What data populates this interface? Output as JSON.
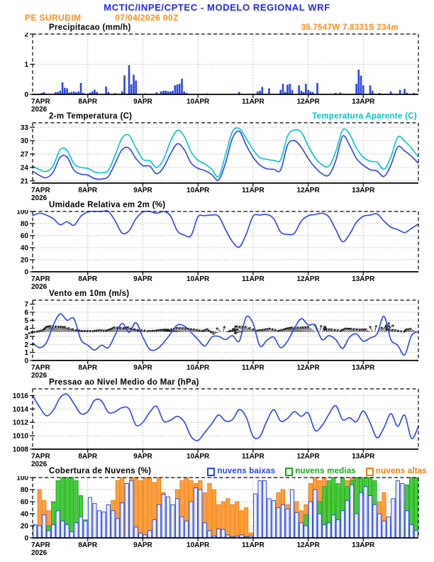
{
  "header": {
    "title": "MCTIC/INPE/CPTEC - MODELO REGIONAL WRF",
    "station": "PE SURUBIM",
    "run": "07/04/2026 00Z",
    "location": "35.7547W 7.8331S 234m"
  },
  "x_axis": {
    "day_labels": [
      "7APR",
      "8APR",
      "9APR",
      "10APR",
      "11APR",
      "12APR",
      "13APR"
    ],
    "year": "2026",
    "total_hours": 168
  },
  "colors": {
    "title_blue": "#2525ee",
    "orange": "#ff8c1a",
    "cyan": "#00c4ca",
    "line_blue": "#2b46e0",
    "green": "#18a818",
    "grid_gray": "#999999"
  },
  "chart_data": [
    {
      "type": "bar",
      "title": "Precipitacao (mm/h)",
      "ylabel": "mm/h",
      "ylim": [
        0,
        2
      ],
      "yticks": [
        0,
        1,
        2
      ],
      "color": "#2b46e0",
      "bars": [
        [
          4,
          0.05
        ],
        [
          5,
          0.07
        ],
        [
          10,
          0.07
        ],
        [
          11,
          0.08
        ],
        [
          12,
          0.12
        ],
        [
          13,
          0.4
        ],
        [
          14,
          0.22
        ],
        [
          15,
          0.2
        ],
        [
          16,
          0.06
        ],
        [
          17,
          0.08
        ],
        [
          18,
          0.1
        ],
        [
          19,
          0.07
        ],
        [
          20,
          0.1
        ],
        [
          21,
          0.38
        ],
        [
          22,
          0.05
        ],
        [
          25,
          0.06
        ],
        [
          26,
          0.1
        ],
        [
          27,
          0.15
        ],
        [
          28,
          0.08
        ],
        [
          32,
          0.26
        ],
        [
          33,
          0.08
        ],
        [
          36,
          0.04
        ],
        [
          39,
          0.1
        ],
        [
          40,
          0.63
        ],
        [
          42,
          0.97
        ],
        [
          43,
          0.33
        ],
        [
          44,
          0.65
        ],
        [
          45,
          0.46
        ],
        [
          49,
          0.03
        ],
        [
          51,
          0.02
        ],
        [
          54,
          0.07
        ],
        [
          56,
          0.1
        ],
        [
          57,
          0.12
        ],
        [
          58,
          0.12
        ],
        [
          59,
          0.1
        ],
        [
          60,
          0.1
        ],
        [
          61,
          0.12
        ],
        [
          62,
          0.3
        ],
        [
          63,
          0.33
        ],
        [
          64,
          0.35
        ],
        [
          65,
          0.52
        ],
        [
          66,
          0.1
        ],
        [
          67,
          0.05
        ],
        [
          74,
          0.02
        ],
        [
          76,
          0.03
        ],
        [
          78,
          0.02
        ],
        [
          90,
          0.08
        ],
        [
          98,
          0.1
        ],
        [
          99,
          0.12
        ],
        [
          100,
          0.25
        ],
        [
          103,
          0.2
        ],
        [
          108,
          0.15
        ],
        [
          109,
          0.35
        ],
        [
          110,
          0.08
        ],
        [
          111,
          0.32
        ],
        [
          112,
          0.35
        ],
        [
          113,
          0.15
        ],
        [
          116,
          0.3
        ],
        [
          117,
          0.12
        ],
        [
          118,
          0.08
        ],
        [
          119,
          0.35
        ],
        [
          120,
          0.15
        ],
        [
          121,
          0.1
        ],
        [
          122,
          0.08
        ],
        [
          124,
          0.38
        ],
        [
          132,
          0.05
        ],
        [
          134,
          0.06
        ],
        [
          141,
          0.35
        ],
        [
          142,
          0.82
        ],
        [
          143,
          0.62
        ],
        [
          144,
          0.3
        ],
        [
          147,
          0.3
        ],
        [
          148,
          0.12
        ],
        [
          151,
          0.05
        ],
        [
          156,
          0.1
        ],
        [
          160,
          0.15
        ],
        [
          162,
          0.18
        ],
        [
          163,
          0.05
        ],
        [
          166,
          0.05
        ]
      ]
    },
    {
      "type": "line",
      "title": "2-m Temperatura (C)",
      "right_label": "Temperatura Aparente (C)",
      "ylim": [
        20.5,
        34
      ],
      "yticks": [
        21,
        24,
        27,
        30,
        33
      ],
      "x_step": 3,
      "series": [
        {
          "name": "2-m Temperatura (C)",
          "color": "#2b46e0",
          "values": [
            23.2,
            22.2,
            21.7,
            23.0,
            26.3,
            26.3,
            23.4,
            22.5,
            22.3,
            21.5,
            21.4,
            22.0,
            25.0,
            28.0,
            28.3,
            26.0,
            24.4,
            24.3,
            22.6,
            24.0,
            27.0,
            29.3,
            28.0,
            25.0,
            23.8,
            23.3,
            22.4,
            21.2,
            25.0,
            30.5,
            32.1,
            29.0,
            26.3,
            24.5,
            23.7,
            23.6,
            23.4,
            29.0,
            30.0,
            28.5,
            26.0,
            24.0,
            22.6,
            22.3,
            25.5,
            31.0,
            29.0,
            26.0,
            24.5,
            23.5,
            23.2,
            22.0,
            24.5,
            28.6,
            27.7,
            26.5,
            24.9
          ]
        },
        {
          "name": "Temperatura Aparente (C)",
          "color": "#00c4ca",
          "values": [
            24.3,
            23.5,
            23.1,
            24.4,
            28.0,
            27.8,
            24.8,
            24.0,
            23.8,
            23.0,
            22.8,
            23.4,
            26.8,
            30.6,
            31.2,
            28.4,
            25.8,
            25.5,
            24.0,
            25.8,
            29.8,
            32.3,
            31.0,
            27.5,
            25.6,
            24.8,
            23.6,
            22.0,
            26.8,
            32.0,
            32.7,
            30.5,
            28.0,
            26.2,
            25.8,
            25.6,
            25.7,
            31.0,
            32.4,
            31.9,
            28.8,
            26.2,
            24.6,
            24.3,
            27.5,
            32.4,
            31.5,
            28.3,
            26.3,
            25.4,
            25.2,
            23.6,
            26.3,
            30.8,
            29.9,
            28.3,
            26.3
          ]
        }
      ]
    },
    {
      "type": "line",
      "title": "Umidade Relativa em 2m (%)",
      "ylim": [
        0,
        100
      ],
      "yticks": [
        0,
        20,
        40,
        60,
        80,
        100
      ],
      "x_step": 3,
      "series": [
        {
          "name": "Umidade Relativa em 2m (%)",
          "color": "#2b46e0",
          "values": [
            93,
            97,
            94,
            88,
            78,
            83,
            77,
            92,
            99,
            100,
            100,
            100,
            84,
            64,
            68,
            88,
            99,
            100,
            97,
            100,
            93,
            68,
            61,
            60,
            91,
            93,
            94,
            92,
            70,
            50,
            41,
            62,
            92,
            94,
            95,
            88,
            66,
            62,
            64,
            84,
            93,
            95,
            97,
            91,
            70,
            50,
            62,
            82,
            92,
            94,
            96,
            84,
            74,
            70,
            65,
            72,
            79
          ]
        }
      ]
    },
    {
      "type": "line",
      "title": "Vento em 10m (m/s)",
      "ylim": [
        0,
        7.5
      ],
      "yticks": [
        0,
        1,
        2,
        3,
        4,
        5,
        6,
        7
      ],
      "x_step": 3,
      "series": [
        {
          "name": "Vento em 10m (m/s)",
          "color": "#2b46e0",
          "values": [
            2.2,
            1.6,
            2.2,
            4.4,
            5.8,
            5.0,
            5.2,
            2.6,
            1.9,
            1.3,
            1.9,
            1.6,
            3.2,
            4.6,
            3.5,
            4.7,
            2.9,
            1.4,
            1.4,
            2.2,
            3.3,
            4.4,
            4.3,
            3.5,
            2.6,
            1.8,
            2.9,
            3.0,
            2.6,
            3.1,
            2.4,
            5.4,
            4.6,
            1.8,
            2.5,
            2.9,
            1.6,
            2.4,
            4.0,
            5.2,
            4.4,
            4.4,
            2.6,
            3.1,
            2.6,
            1.5,
            2.9,
            3.3,
            2.4,
            2.8,
            3.3,
            5.5,
            2.6,
            1.9,
            0.7,
            3.1,
            3.6
          ]
        }
      ],
      "vectors": {
        "baseline": 3.55,
        "scale": 3.1,
        "color": "#111111",
        "dirs_deg": [
          200,
          170,
          150,
          145,
          150,
          148,
          152,
          158,
          162,
          150,
          146,
          150,
          155,
          150,
          146,
          150,
          160,
          152,
          142,
          150,
          160,
          168,
          152,
          146,
          150,
          160,
          150,
          200,
          15,
          25,
          200,
          150,
          146,
          150,
          152,
          142,
          150,
          146,
          152,
          155,
          150,
          146,
          40,
          150,
          150,
          146,
          141,
          150,
          148,
          152,
          40,
          35,
          150,
          146,
          150,
          155,
          150
        ]
      }
    },
    {
      "type": "line",
      "title": "Pressao ao Nivel Medio do Mar (hPa)",
      "ylim": [
        1008,
        1017
      ],
      "yticks": [
        1008,
        1010,
        1012,
        1014,
        1016
      ],
      "x_step": 3,
      "series": [
        {
          "name": "Pressao ao Nivel Medio do Mar (hPa)",
          "color": "#2b46e0",
          "values": [
            1016.0,
            1014.3,
            1013.0,
            1013.8,
            1015.7,
            1016.2,
            1014.8,
            1013.3,
            1013.6,
            1015.3,
            1015.2,
            1013.5,
            1013.6,
            1014.2,
            1014.0,
            1011.6,
            1012.0,
            1013.5,
            1014.4,
            1012.2,
            1012.3,
            1012.9,
            1012.1,
            1009.9,
            1009.3,
            1010.5,
            1011.8,
            1013.1,
            1012.2,
            1012.4,
            1013.9,
            1012.8,
            1009.9,
            1009.9,
            1012.2,
            1013.9,
            1012.2,
            1012.6,
            1013.6,
            1012.9,
            1013.4,
            1010.8,
            1011.5,
            1013.2,
            1014.5,
            1012.4,
            1012.7,
            1012.1,
            1013.7,
            1011.9,
            1009.7,
            1011.2,
            1013.3,
            1011.4,
            1013.1,
            1009.6,
            1011.4
          ]
        }
      ]
    },
    {
      "type": "cloud",
      "title": "Cobertura de Nuvens (%)",
      "ylim": [
        0,
        100
      ],
      "yticks": [
        0,
        20,
        40,
        60,
        80,
        100
      ],
      "x_step": 2,
      "series": [
        {
          "name": "nuvens baixas",
          "color": "#2b46e0",
          "fill": "#edf1ff",
          "values": [
            22,
            20,
            38,
            12,
            22,
            45,
            28,
            22,
            10,
            25,
            35,
            28,
            67,
            57,
            45,
            43,
            55,
            45,
            32,
            58,
            90,
            95,
            18,
            8,
            5,
            12,
            30,
            55,
            72,
            68,
            55,
            65,
            35,
            28,
            60,
            83,
            80,
            25,
            12,
            3,
            15,
            14,
            5,
            2,
            3,
            5,
            2,
            3,
            73,
            95,
            95,
            65,
            62,
            50,
            55,
            48,
            80,
            42,
            25,
            20,
            60,
            80,
            40,
            22,
            25,
            38,
            30,
            45,
            62,
            88,
            40,
            75,
            85,
            70,
            55,
            40,
            28,
            35,
            65,
            95,
            90,
            45,
            22,
            12
          ]
        },
        {
          "name": "nuvens medias",
          "color": "#18a818",
          "fill": "#46cf3c",
          "values": [
            15,
            10,
            5,
            20,
            60,
            95,
            100,
            100,
            100,
            95,
            70,
            30,
            10,
            5,
            2,
            0,
            0,
            0,
            0,
            0,
            0,
            0,
            2,
            5,
            3,
            2,
            0,
            0,
            0,
            0,
            0,
            0,
            0,
            0,
            0,
            0,
            0,
            0,
            0,
            0,
            0,
            0,
            0,
            0,
            0,
            0,
            0,
            0,
            0,
            0,
            0,
            0,
            0,
            5,
            10,
            35,
            40,
            30,
            20,
            38,
            42,
            35,
            60,
            85,
            95,
            100,
            90,
            100,
            85,
            95,
            100,
            100,
            100,
            100,
            95,
            35,
            22,
            30,
            20,
            15,
            60,
            88,
            100,
            100
          ]
        },
        {
          "name": "nuvens altas",
          "color": "#f07d00",
          "fill": "#ffa043",
          "values": [
            20,
            80,
            62,
            45,
            25,
            10,
            5,
            2,
            0,
            0,
            0,
            0,
            0,
            0,
            0,
            3,
            30,
            62,
            95,
            100,
            88,
            100,
            100,
            95,
            100,
            100,
            92,
            100,
            75,
            65,
            45,
            80,
            95,
            100,
            95,
            90,
            95,
            75,
            90,
            80,
            55,
            60,
            65,
            55,
            60,
            45,
            50,
            8,
            70,
            60,
            75,
            40,
            20,
            75,
            80,
            55,
            35,
            60,
            45,
            55,
            90,
            100,
            95,
            100,
            85,
            60,
            45,
            80,
            95,
            100,
            40,
            10,
            8,
            12,
            20,
            60,
            75,
            20,
            10,
            88,
            60,
            30,
            95,
            100
          ]
        }
      ]
    }
  ]
}
